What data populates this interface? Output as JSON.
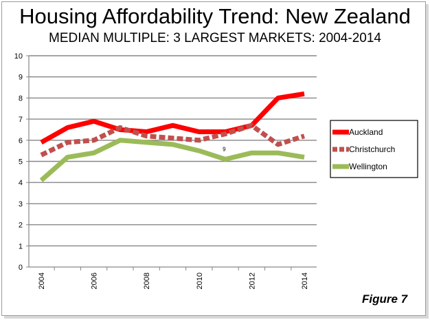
{
  "header": {
    "title": "Housing Affordability Trend: New Zealand",
    "subtitle": "MEDIAN MULTIPLE: 3 LARGEST MARKETS: 2004-2014"
  },
  "figure_label": "Figure 7",
  "annotation": "9",
  "colors": {
    "auckland": "#ff0000",
    "christchurch": "#c0504d",
    "wellington": "#9bbb59",
    "grid": "#868686",
    "axis": "#868686",
    "text": "#000000"
  },
  "chart_data": {
    "type": "line",
    "title": "Housing Affordability Trend: New Zealand",
    "subtitle": "MEDIAN MULTIPLE: 3 LARGEST MARKETS: 2004-2014",
    "x": [
      2004,
      2005,
      2006,
      2007,
      2008,
      2009,
      2010,
      2011,
      2012,
      2013,
      2014
    ],
    "x_tick_labels": [
      "2004",
      "2006",
      "2008",
      "2010",
      "2012",
      "2014"
    ],
    "y_tick_labels": [
      "0",
      "1",
      "2",
      "3",
      "4",
      "5",
      "6",
      "7",
      "8",
      "9",
      "10"
    ],
    "ylim": [
      0,
      10
    ],
    "grid": true,
    "legend_position": "right",
    "series": [
      {
        "name": "Auckland",
        "style": "solid",
        "values": [
          5.9,
          6.6,
          6.9,
          6.5,
          6.4,
          6.7,
          6.4,
          6.4,
          6.7,
          8.0,
          8.2
        ]
      },
      {
        "name": "Christchurch",
        "style": "dashed",
        "values": [
          5.3,
          5.9,
          6.0,
          6.6,
          6.2,
          6.1,
          6.0,
          6.3,
          6.7,
          5.8,
          6.2
        ]
      },
      {
        "name": "Wellington",
        "style": "solid",
        "values": [
          4.1,
          5.2,
          5.4,
          6.0,
          5.9,
          5.8,
          5.5,
          5.1,
          5.4,
          5.4,
          5.2
        ]
      }
    ]
  }
}
